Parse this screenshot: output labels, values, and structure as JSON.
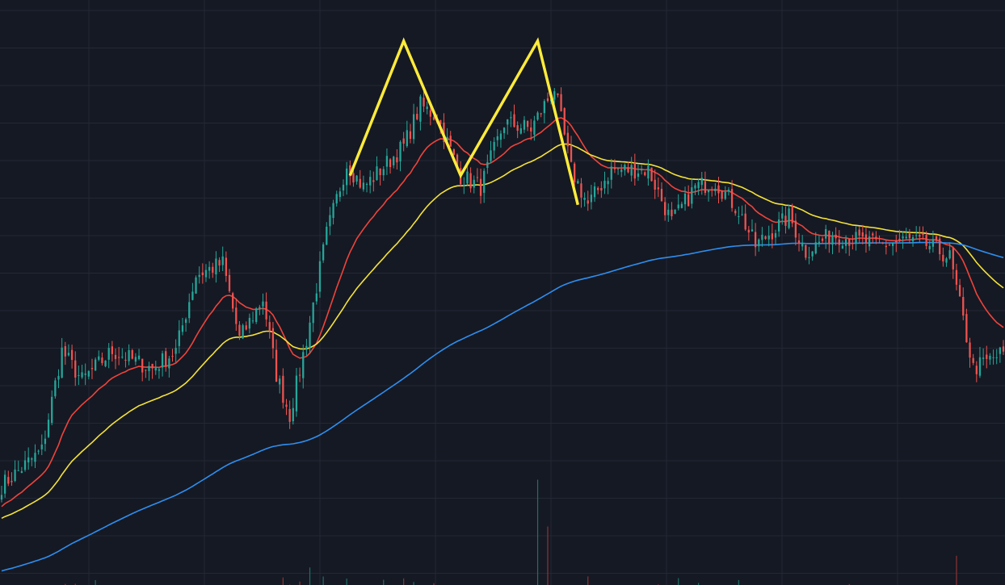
{
  "colors": {
    "background": "#151923",
    "grid": "#222834",
    "candle_up": "#26a69a",
    "candle_down": "#ef5350",
    "ma_fast": "#f0433b",
    "ma_mid": "#f5e23a",
    "ma_slow": "#2e8ef0",
    "pattern": "#ffeb3b",
    "volume_up": "#1f6f69",
    "volume_down": "#8a3535"
  },
  "chart_data": {
    "type": "candlestick",
    "title": "",
    "xlabel": "",
    "ylabel": "",
    "grid": true,
    "legend": "none",
    "axes_visible": false,
    "price_range": [
      0,
      100
    ],
    "candle_count": 300,
    "price_path_keypoints": [
      [
        0,
        17
      ],
      [
        12,
        23
      ],
      [
        18,
        40
      ],
      [
        24,
        35
      ],
      [
        33,
        40
      ],
      [
        45,
        37
      ],
      [
        52,
        40
      ],
      [
        58,
        53
      ],
      [
        66,
        55
      ],
      [
        71,
        42
      ],
      [
        78,
        49
      ],
      [
        82,
        36
      ],
      [
        86,
        29
      ],
      [
        91,
        42
      ],
      [
        97,
        60
      ],
      [
        103,
        72
      ],
      [
        108,
        68
      ],
      [
        120,
        75
      ],
      [
        125,
        82
      ],
      [
        130,
        80
      ],
      [
        137,
        70
      ],
      [
        143,
        68
      ],
      [
        150,
        79
      ],
      [
        158,
        78
      ],
      [
        165,
        85
      ],
      [
        170,
        71
      ],
      [
        175,
        65
      ],
      [
        182,
        71
      ],
      [
        193,
        71
      ],
      [
        200,
        62
      ],
      [
        207,
        68
      ],
      [
        213,
        69
      ],
      [
        220,
        64
      ],
      [
        225,
        58
      ],
      [
        235,
        63
      ],
      [
        240,
        57
      ],
      [
        248,
        60
      ],
      [
        262,
        58
      ],
      [
        270,
        59
      ],
      [
        277,
        58
      ],
      [
        283,
        56
      ],
      [
        290,
        37
      ],
      [
        300,
        40
      ]
    ],
    "moving_averages": [
      {
        "color": "#f0433b",
        "period": 20
      },
      {
        "color": "#f5e23a",
        "period": 50
      },
      {
        "color": "#2e8ef0",
        "period": 200
      }
    ],
    "pattern": {
      "type": "double-top",
      "points": [
        [
          104,
          70
        ],
        [
          120,
          93
        ],
        [
          137,
          70
        ],
        [
          160,
          93
        ],
        [
          172,
          65
        ]
      ]
    },
    "volume_spikes": [
      {
        "index": 160,
        "value": 18
      },
      {
        "index": 163,
        "value": 10
      },
      {
        "index": 92,
        "value": 3
      },
      {
        "index": 285,
        "value": 5
      }
    ]
  }
}
